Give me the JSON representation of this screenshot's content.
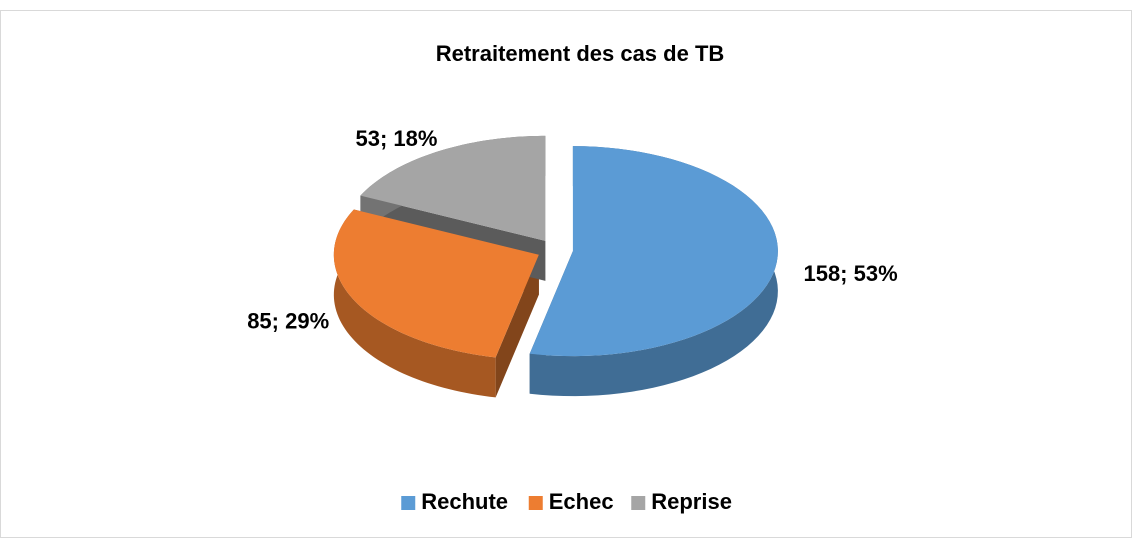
{
  "chart_data": {
    "type": "pie",
    "title": "Retraitement des cas de TB",
    "categories": [
      "Rechute",
      "Echec",
      "Reprise"
    ],
    "values": [
      158,
      85,
      53
    ],
    "value_labels": [
      "158; 53%",
      "85; 29%",
      "53; 18%"
    ],
    "colors": [
      "#5b9bd5",
      "#ed7d31",
      "#a5a5a5"
    ],
    "legend": "bottom"
  }
}
